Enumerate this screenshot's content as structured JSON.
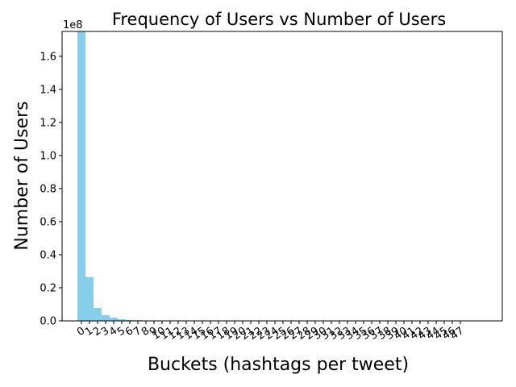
{
  "chart_data": {
    "type": "bar",
    "title": "Frequency of Users vs Number of Users",
    "xlabel": "Buckets (hashtags per tweet)",
    "ylabel": "Number of Users",
    "y_offset_text": "1e8",
    "ylim": [
      0,
      1.75
    ],
    "y_ticks": [
      "0.0",
      "0.2",
      "0.4",
      "0.6",
      "0.8",
      "1.0",
      "1.2",
      "1.4",
      "1.6"
    ],
    "grid": false,
    "bar_color": "#87ceeb",
    "categories": [
      "0",
      "1",
      "2",
      "3",
      "4",
      "5",
      "6",
      "7",
      "8",
      "9",
      "10",
      "11",
      "12",
      "13",
      "14",
      "15",
      "16",
      "17",
      "18",
      "19",
      "20",
      "21",
      "22",
      "23",
      "24",
      "25",
      "26",
      "27",
      "28",
      "29",
      "30",
      "31",
      "32",
      "33",
      "34",
      "35",
      "36",
      "37",
      "38",
      "39",
      "40",
      "41",
      "42",
      "43",
      "44",
      "45",
      "46",
      "47"
    ],
    "values": [
      1.75,
      0.265,
      0.078,
      0.035,
      0.02,
      0.01,
      0.006,
      0.004,
      0.0025,
      0.0015,
      0.001,
      0.0007,
      0.0005,
      0.0004,
      0.0003,
      0.0002,
      0.00015,
      0.0001,
      0.0001,
      8e-05,
      6e-05,
      5e-05,
      4e-05,
      3e-05,
      3e-05,
      2e-05,
      2e-05,
      2e-05,
      1e-05,
      1e-05,
      1e-05,
      1e-05,
      1e-05,
      1e-05,
      1e-05,
      1e-05,
      1e-05,
      1e-05,
      1e-05,
      1e-05,
      1e-05,
      1e-05,
      1e-05,
      1e-05,
      1e-05,
      1e-05,
      1e-05,
      1e-05
    ]
  }
}
